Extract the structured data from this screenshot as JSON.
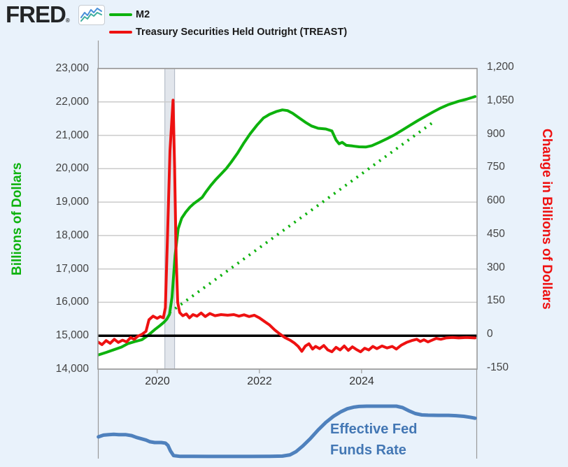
{
  "header": {
    "logo_text": "FRED",
    "logo_mark": "®",
    "icon": {
      "name": "fred-line-chart-icon",
      "line1_color": "#4a90d9",
      "line2_color": "#3fae9e"
    },
    "legend": [
      {
        "label": "M2",
        "color": "#0db20d"
      },
      {
        "label": "Treasury Securities Held Outright (TREAST)",
        "color": "#ee1111"
      }
    ]
  },
  "annotation": {
    "line1": "Effective Fed",
    "line2": "Funds Rate",
    "color": "#4377b4"
  },
  "colors": {
    "page_background": "#e9f2fb",
    "plot_background": "#ffffff",
    "gridline": "#cbcbcb",
    "plot_border": "#999999",
    "recession_band_fill": "#e2e6ec",
    "recession_band_edge": "#b6bdc9",
    "zero_line": "#000000",
    "m2_green": "#0db20d",
    "treast_red": "#ee1111",
    "fed_funds_blue": "#4f81bd",
    "tick_text": "#434343"
  },
  "chart_data": {
    "type": "line",
    "title": "",
    "x_unit": "year-decimal",
    "x_axis": {
      "range": [
        2018.84,
        2026.26
      ],
      "ticks": [
        {
          "label": "2020",
          "year": 2020
        },
        {
          "label": "2022",
          "year": 2022
        },
        {
          "label": "2024",
          "year": 2024
        }
      ]
    },
    "left_axis": {
      "label": "Billions of Dollars",
      "color": "#0db20d",
      "range": [
        14000,
        23000
      ],
      "tick_values": [
        23000,
        22000,
        21000,
        20000,
        19000,
        18000,
        17000,
        16000,
        15000,
        14000
      ],
      "tick_labels": [
        "23,000",
        "22,000",
        "21,000",
        "20,000",
        "19,000",
        "18,000",
        "17,000",
        "16,000",
        "15,000",
        "14,000"
      ]
    },
    "right_axis": {
      "label": "Change in Billions of Dollars",
      "color": "#ee1111",
      "range": [
        -150,
        1200
      ],
      "tick_values": [
        1200,
        1050,
        900,
        750,
        600,
        450,
        300,
        150,
        0,
        -150
      ],
      "tick_labels": [
        "1,200",
        "1,050",
        "900",
        "750",
        "600",
        "450",
        "300",
        "150",
        "0",
        "-150"
      ]
    },
    "recession_band": {
      "x_start": 2020.15,
      "x_end": 2020.34
    },
    "series": [
      {
        "name": "M2 pre-pandemic trend (dotted)",
        "axis": "left",
        "color": "#0db20d",
        "style": "dotted",
        "width": 4,
        "points": [
          [
            2020.24,
            15690
          ],
          [
            2025.38,
            21370
          ]
        ]
      },
      {
        "name": "M2",
        "axis": "left",
        "color": "#0db20d",
        "style": "solid",
        "width": 4,
        "points": [
          [
            2018.84,
            14420
          ],
          [
            2019.0,
            14500
          ],
          [
            2019.15,
            14580
          ],
          [
            2019.3,
            14660
          ],
          [
            2019.42,
            14760
          ],
          [
            2019.55,
            14820
          ],
          [
            2019.7,
            14880
          ],
          [
            2019.82,
            15010
          ],
          [
            2019.95,
            15180
          ],
          [
            2020.05,
            15300
          ],
          [
            2020.13,
            15400
          ],
          [
            2020.19,
            15500
          ],
          [
            2020.24,
            15640
          ],
          [
            2020.29,
            16150
          ],
          [
            2020.35,
            17400
          ],
          [
            2020.41,
            18200
          ],
          [
            2020.48,
            18520
          ],
          [
            2020.56,
            18700
          ],
          [
            2020.64,
            18850
          ],
          [
            2020.72,
            18960
          ],
          [
            2020.8,
            19050
          ],
          [
            2020.88,
            19140
          ],
          [
            2020.96,
            19320
          ],
          [
            2021.05,
            19500
          ],
          [
            2021.15,
            19680
          ],
          [
            2021.25,
            19840
          ],
          [
            2021.35,
            20000
          ],
          [
            2021.45,
            20200
          ],
          [
            2021.57,
            20460
          ],
          [
            2021.7,
            20780
          ],
          [
            2021.82,
            21050
          ],
          [
            2021.95,
            21300
          ],
          [
            2022.08,
            21520
          ],
          [
            2022.2,
            21630
          ],
          [
            2022.33,
            21710
          ],
          [
            2022.45,
            21760
          ],
          [
            2022.55,
            21740
          ],
          [
            2022.65,
            21660
          ],
          [
            2022.78,
            21520
          ],
          [
            2022.9,
            21390
          ],
          [
            2023.02,
            21280
          ],
          [
            2023.15,
            21210
          ],
          [
            2023.3,
            21190
          ],
          [
            2023.42,
            21130
          ],
          [
            2023.5,
            20860
          ],
          [
            2023.56,
            20745
          ],
          [
            2023.62,
            20790
          ],
          [
            2023.7,
            20700
          ],
          [
            2023.82,
            20680
          ],
          [
            2023.95,
            20655
          ],
          [
            2024.08,
            20650
          ],
          [
            2024.2,
            20690
          ],
          [
            2024.35,
            20790
          ],
          [
            2024.5,
            20900
          ],
          [
            2024.65,
            21020
          ],
          [
            2024.8,
            21160
          ],
          [
            2024.95,
            21300
          ],
          [
            2025.1,
            21440
          ],
          [
            2025.25,
            21570
          ],
          [
            2025.4,
            21700
          ],
          [
            2025.55,
            21820
          ],
          [
            2025.7,
            21920
          ],
          [
            2025.9,
            22020
          ],
          [
            2026.05,
            22080
          ],
          [
            2026.22,
            22160
          ]
        ]
      },
      {
        "name": "Zero change reference line",
        "axis": "right",
        "color": "#000000",
        "style": "solid",
        "width": 3.5,
        "points": [
          [
            2018.84,
            0
          ],
          [
            2026.26,
            0
          ]
        ]
      },
      {
        "name": "Treasury Securities Held Outright (TREAST), change",
        "axis": "right",
        "color": "#ee1111",
        "style": "solid",
        "width": 4,
        "points": [
          [
            2018.84,
            -28
          ],
          [
            2018.92,
            -40
          ],
          [
            2019.0,
            -22
          ],
          [
            2019.08,
            -34
          ],
          [
            2019.16,
            -16
          ],
          [
            2019.24,
            -30
          ],
          [
            2019.32,
            -20
          ],
          [
            2019.4,
            -28
          ],
          [
            2019.48,
            -8
          ],
          [
            2019.55,
            -16
          ],
          [
            2019.62,
            -2
          ],
          [
            2019.7,
            6
          ],
          [
            2019.78,
            20
          ],
          [
            2019.84,
            72
          ],
          [
            2019.92,
            88
          ],
          [
            2020.0,
            78
          ],
          [
            2020.06,
            86
          ],
          [
            2020.12,
            80
          ],
          [
            2020.16,
            126
          ],
          [
            2020.2,
            430
          ],
          [
            2020.25,
            830
          ],
          [
            2020.31,
            1058
          ],
          [
            2020.34,
            760
          ],
          [
            2020.37,
            360
          ],
          [
            2020.4,
            150
          ],
          [
            2020.44,
            104
          ],
          [
            2020.5,
            90
          ],
          [
            2020.57,
            98
          ],
          [
            2020.63,
            80
          ],
          [
            2020.7,
            95
          ],
          [
            2020.78,
            88
          ],
          [
            2020.86,
            102
          ],
          [
            2020.94,
            86
          ],
          [
            2021.03,
            100
          ],
          [
            2021.13,
            90
          ],
          [
            2021.25,
            95
          ],
          [
            2021.38,
            92
          ],
          [
            2021.5,
            95
          ],
          [
            2021.6,
            88
          ],
          [
            2021.7,
            94
          ],
          [
            2021.8,
            86
          ],
          [
            2021.9,
            92
          ],
          [
            2022.0,
            80
          ],
          [
            2022.1,
            64
          ],
          [
            2022.2,
            48
          ],
          [
            2022.3,
            26
          ],
          [
            2022.4,
            8
          ],
          [
            2022.5,
            -8
          ],
          [
            2022.6,
            -20
          ],
          [
            2022.68,
            -32
          ],
          [
            2022.76,
            -48
          ],
          [
            2022.83,
            -70
          ],
          [
            2022.9,
            -46
          ],
          [
            2022.97,
            -36
          ],
          [
            2023.04,
            -60
          ],
          [
            2023.1,
            -48
          ],
          [
            2023.18,
            -58
          ],
          [
            2023.26,
            -44
          ],
          [
            2023.34,
            -64
          ],
          [
            2023.42,
            -72
          ],
          [
            2023.5,
            -52
          ],
          [
            2023.58,
            -64
          ],
          [
            2023.66,
            -46
          ],
          [
            2023.74,
            -66
          ],
          [
            2023.82,
            -50
          ],
          [
            2023.9,
            -62
          ],
          [
            2023.98,
            -72
          ],
          [
            2024.06,
            -56
          ],
          [
            2024.14,
            -64
          ],
          [
            2024.22,
            -48
          ],
          [
            2024.3,
            -58
          ],
          [
            2024.4,
            -46
          ],
          [
            2024.5,
            -55
          ],
          [
            2024.6,
            -48
          ],
          [
            2024.68,
            -60
          ],
          [
            2024.78,
            -42
          ],
          [
            2024.88,
            -30
          ],
          [
            2024.98,
            -22
          ],
          [
            2025.08,
            -16
          ],
          [
            2025.15,
            -26
          ],
          [
            2025.22,
            -18
          ],
          [
            2025.3,
            -28
          ],
          [
            2025.38,
            -20
          ],
          [
            2025.46,
            -12
          ],
          [
            2025.55,
            -16
          ],
          [
            2025.65,
            -10
          ],
          [
            2025.78,
            -8
          ],
          [
            2025.9,
            -10
          ],
          [
            2026.05,
            -8
          ],
          [
            2026.22,
            -10
          ]
        ]
      }
    ],
    "sub_chart": {
      "name": "Effective Fed Funds Rate",
      "color": "#4f81bd",
      "unit": "percent",
      "points": [
        [
          2018.85,
          2.16
        ],
        [
          2018.95,
          2.35
        ],
        [
          2019.05,
          2.4
        ],
        [
          2019.15,
          2.44
        ],
        [
          2019.25,
          2.4
        ],
        [
          2019.38,
          2.4
        ],
        [
          2019.5,
          2.3
        ],
        [
          2019.6,
          2.1
        ],
        [
          2019.7,
          1.95
        ],
        [
          2019.78,
          1.83
        ],
        [
          2019.86,
          1.64
        ],
        [
          2019.95,
          1.56
        ],
        [
          2020.08,
          1.56
        ],
        [
          2020.16,
          1.5
        ],
        [
          2020.21,
          1.26
        ],
        [
          2020.26,
          0.67
        ],
        [
          2020.32,
          0.18
        ],
        [
          2020.45,
          0.09
        ],
        [
          2020.7,
          0.09
        ],
        [
          2021.0,
          0.08
        ],
        [
          2021.4,
          0.08
        ],
        [
          2021.8,
          0.08
        ],
        [
          2022.2,
          0.1
        ],
        [
          2022.45,
          0.12
        ],
        [
          2022.6,
          0.25
        ],
        [
          2022.72,
          0.6
        ],
        [
          2022.85,
          1.2
        ],
        [
          2023.0,
          2.0
        ],
        [
          2023.15,
          2.9
        ],
        [
          2023.3,
          3.7
        ],
        [
          2023.45,
          4.35
        ],
        [
          2023.6,
          4.85
        ],
        [
          2023.72,
          5.15
        ],
        [
          2023.85,
          5.33
        ],
        [
          2023.95,
          5.4
        ],
        [
          2024.1,
          5.43
        ],
        [
          2024.3,
          5.43
        ],
        [
          2024.5,
          5.43
        ],
        [
          2024.68,
          5.43
        ],
        [
          2024.8,
          5.28
        ],
        [
          2024.92,
          4.95
        ],
        [
          2025.05,
          4.65
        ],
        [
          2025.18,
          4.5
        ],
        [
          2025.3,
          4.47
        ],
        [
          2025.5,
          4.45
        ],
        [
          2025.7,
          4.45
        ],
        [
          2025.85,
          4.42
        ],
        [
          2026.0,
          4.35
        ],
        [
          2026.12,
          4.25
        ],
        [
          2026.22,
          4.15
        ]
      ]
    }
  }
}
